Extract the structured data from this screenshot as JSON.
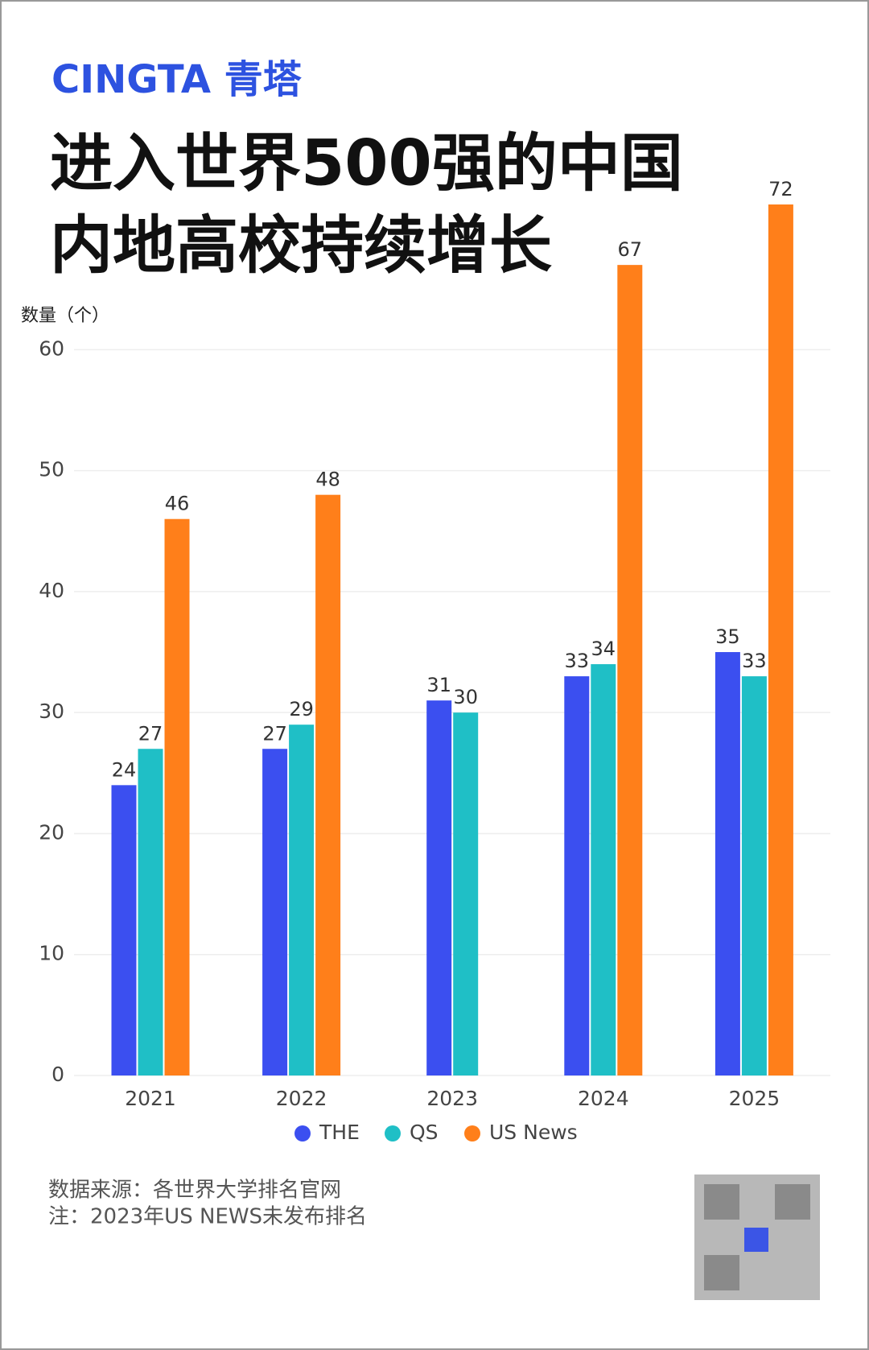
{
  "chart_data": {
    "type": "bar",
    "brand": "CINGTA 青塔",
    "title": [
      "进入世界500强的中国",
      "内地高校持续增长"
    ],
    "ylabel": "数量（个）",
    "categories": [
      "2021",
      "2022",
      "2023",
      "2024",
      "2025"
    ],
    "series": [
      {
        "name": "THE",
        "color": "#3b4ff0",
        "values": [
          24,
          27,
          31,
          33,
          35
        ]
      },
      {
        "name": "QS",
        "color": "#1fbfc6",
        "values": [
          27,
          29,
          30,
          34,
          33
        ]
      },
      {
        "name": "US News",
        "color": "#ff7f1a",
        "values": [
          46,
          48,
          null,
          67,
          72
        ]
      }
    ],
    "ylim": [
      0,
      72
    ],
    "yticks": [
      0,
      10,
      20,
      30,
      40,
      50,
      60
    ],
    "grid": true,
    "legend": "bottom",
    "notes": [
      "数据来源：各世界大学排名官网",
      "注：2023年US NEWS未发布排名"
    ]
  }
}
